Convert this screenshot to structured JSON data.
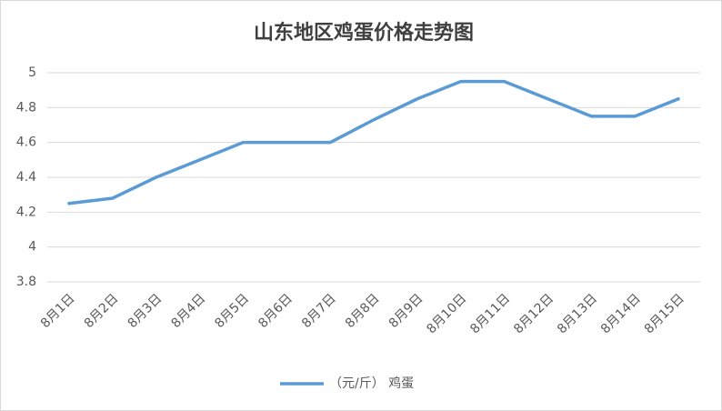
{
  "chart_data": {
    "type": "line",
    "title": "山东地区鸡蛋价格走势图",
    "categories": [
      "8月1日",
      "8月2日",
      "8月3日",
      "8月4日",
      "8月5日",
      "8月6日",
      "8月7日",
      "8月8日",
      "8月9日",
      "8月10日",
      "8月11日",
      "8月12日",
      "8月13日",
      "8月14日",
      "8月15日"
    ],
    "series": [
      {
        "name": "（元/斤） 鸡蛋",
        "color": "#5b9bd5",
        "values": [
          4.25,
          4.28,
          4.4,
          4.5,
          4.6,
          4.6,
          4.6,
          4.73,
          4.85,
          4.95,
          4.95,
          4.85,
          4.75,
          4.75,
          4.85
        ]
      }
    ],
    "ylim": [
      3.8,
      5
    ],
    "yticks": [
      3.8,
      4,
      4.2,
      4.4,
      4.6,
      4.8,
      5
    ],
    "grid": true,
    "legend": "bottom"
  }
}
